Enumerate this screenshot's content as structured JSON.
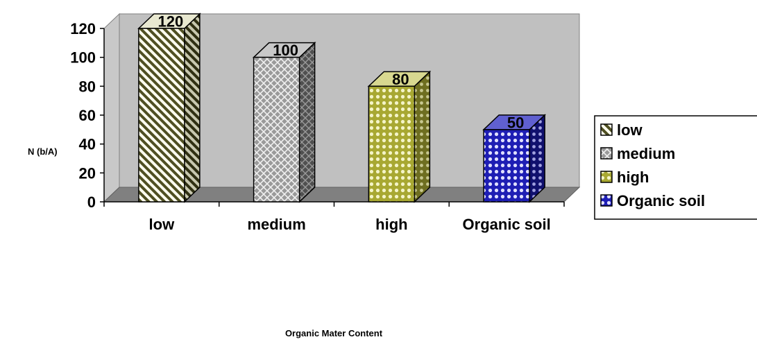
{
  "chart_data": {
    "type": "bar",
    "title": "",
    "categories": [
      "low",
      "medium",
      "high",
      "Organic soil"
    ],
    "values": [
      120,
      100,
      80,
      50
    ],
    "data_labels": [
      "120",
      "100",
      "80",
      "50"
    ],
    "xlabel": "Organic Mater Content",
    "ylabel": "N (b/A)",
    "ylim": [
      0,
      120
    ],
    "yticks": [
      0,
      20,
      40,
      60,
      80,
      100,
      120
    ],
    "grid": false,
    "legend": {
      "placement": "right",
      "entries": [
        "low",
        "medium",
        "high",
        "Organic soil"
      ]
    },
    "colors": {
      "low": "#5b5b2a",
      "medium": "#8c8c8c",
      "high": "#b5b53a",
      "organic_soil": "#1e1eb4",
      "plot_back": "#c0c0c0",
      "floor": "#808080"
    }
  }
}
